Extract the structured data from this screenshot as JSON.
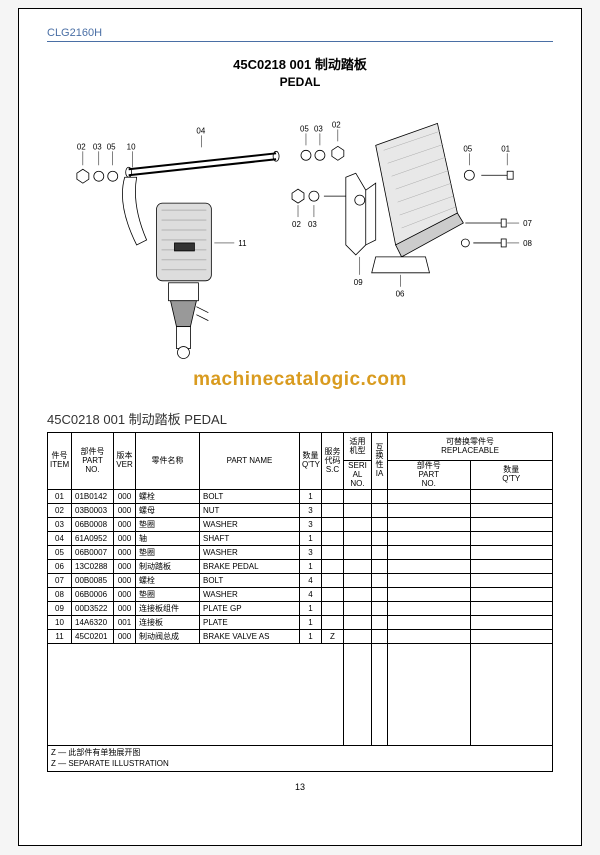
{
  "doc_code": "CLG2160H",
  "title_combined": "45C0218 001 制动踏板",
  "title_en": "PEDAL",
  "watermark": "machinecatalogic.com",
  "section_title": "45C0218 001 制动踏板 PEDAL",
  "page_number": "13",
  "headers": {
    "item": "件号\nITEM",
    "partno": "部件号\nPART\nNO.",
    "ver": "版本\nVER",
    "cn_name": "零件名称",
    "en_name": "PART NAME",
    "qty": "数量\nQ'TY",
    "sc": "服务\n代码\nS.C",
    "serial_top": "适用\n机型",
    "serial_bot": "SERI\nAL\nNO.",
    "ia": "互\n换\n性\nIA",
    "replace": "可替换零件号\nREPLACEABLE",
    "rpart": "部件号\nPART\nNO.",
    "rqty": "数量\nQ'TY"
  },
  "rows": [
    {
      "item": "01",
      "partno": "01B0142",
      "ver": "000",
      "cn": "螺栓",
      "en": "BOLT",
      "qty": "1",
      "sc": ""
    },
    {
      "item": "02",
      "partno": "03B0003",
      "ver": "000",
      "cn": "螺母",
      "en": "NUT",
      "qty": "3",
      "sc": ""
    },
    {
      "item": "03",
      "partno": "06B0008",
      "ver": "000",
      "cn": "垫圈",
      "en": "WASHER",
      "qty": "3",
      "sc": ""
    },
    {
      "item": "04",
      "partno": "61A0952",
      "ver": "000",
      "cn": "轴",
      "en": "SHAFT",
      "qty": "1",
      "sc": ""
    },
    {
      "item": "05",
      "partno": "06B0007",
      "ver": "000",
      "cn": "垫圈",
      "en": "WASHER",
      "qty": "3",
      "sc": ""
    },
    {
      "item": "06",
      "partno": "13C0288",
      "ver": "000",
      "cn": "制动踏板",
      "en": "BRAKE PEDAL",
      "qty": "1",
      "sc": ""
    },
    {
      "item": "07",
      "partno": "00B0085",
      "ver": "000",
      "cn": "螺栓",
      "en": "BOLT",
      "qty": "4",
      "sc": ""
    },
    {
      "item": "08",
      "partno": "06B0006",
      "ver": "000",
      "cn": "垫圈",
      "en": "WASHER",
      "qty": "4",
      "sc": ""
    },
    {
      "item": "09",
      "partno": "00D3522",
      "ver": "000",
      "cn": "连接板组件",
      "en": "PLATE GP",
      "qty": "1",
      "sc": ""
    },
    {
      "item": "10",
      "partno": "14A6320",
      "ver": "001",
      "cn": "连接板",
      "en": "PLATE",
      "qty": "1",
      "sc": ""
    },
    {
      "item": "11",
      "partno": "45C0201",
      "ver": "000",
      "cn": "制动阀总成",
      "en": "BRAKE VALVE AS",
      "qty": "1",
      "sc": "Z"
    }
  ],
  "footnote_cn": "Z — 此部件有单独展开图",
  "footnote_en": "Z — SEPARATE ILLUSTRATION",
  "callouts": {
    "c02": "02",
    "c03": "03",
    "c05": "05",
    "c10": "10",
    "c04": "04",
    "c11": "11",
    "c02b": "02",
    "c03b": "03",
    "c05b": "05",
    "c03c": "03",
    "c02c": "02",
    "c05c": "05",
    "c01": "01",
    "c07": "07",
    "c08": "08",
    "c09": "09",
    "c06": "06"
  }
}
